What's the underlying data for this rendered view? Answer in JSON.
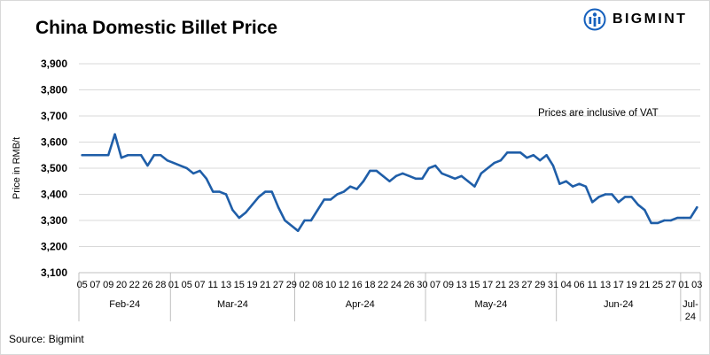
{
  "brand": {
    "name": "BIGMINT",
    "logo_icon": "bigmint-logo-icon",
    "color": "#1560bd"
  },
  "footer": {
    "source": "Source: Bigmint"
  },
  "chart_data": {
    "type": "line",
    "title": "China Domestic Billet Price",
    "ylabel": "Price in RMB/t",
    "xlabel": "",
    "ylim": [
      3100,
      3900
    ],
    "yticks": [
      3100,
      3200,
      3300,
      3400,
      3500,
      3600,
      3700,
      3800,
      3900
    ],
    "ytick_labels": [
      "3,100",
      "3,200",
      "3,300",
      "3,400",
      "3,500",
      "3,600",
      "3,700",
      "3,800",
      "3,900"
    ],
    "grid": true,
    "line_color": "#1f5ea8",
    "annotation": "Prices are inclusive of VAT",
    "months": [
      {
        "label": "Feb-24",
        "days": [
          "05",
          "07",
          "09",
          "20",
          "22",
          "26",
          "28"
        ]
      },
      {
        "label": "Mar-24",
        "days": [
          "01",
          "05",
          "07",
          "11",
          "13",
          "15",
          "19",
          "21",
          "27",
          "29"
        ]
      },
      {
        "label": "Apr-24",
        "days": [
          "02",
          "08",
          "10",
          "12",
          "16",
          "18",
          "22",
          "24",
          "26",
          "30"
        ]
      },
      {
        "label": "May-24",
        "days": [
          "07",
          "09",
          "13",
          "15",
          "17",
          "21",
          "23",
          "27",
          "29",
          "31"
        ]
      },
      {
        "label": "Jun-24",
        "days": [
          "04",
          "06",
          "11",
          "13",
          "17",
          "19",
          "21",
          "25",
          "27"
        ]
      },
      {
        "label": "Jul-24",
        "days": [
          "01",
          "03"
        ]
      }
    ],
    "x": [
      "2024-02-05",
      "2024-02-06",
      "2024-02-07",
      "2024-02-08",
      "2024-02-09",
      "2024-02-19",
      "2024-02-20",
      "2024-02-21",
      "2024-02-22",
      "2024-02-23",
      "2024-02-26",
      "2024-02-27",
      "2024-02-28",
      "2024-02-29",
      "2024-03-01",
      "2024-03-04",
      "2024-03-05",
      "2024-03-06",
      "2024-03-07",
      "2024-03-08",
      "2024-03-11",
      "2024-03-12",
      "2024-03-13",
      "2024-03-14",
      "2024-03-15",
      "2024-03-18",
      "2024-03-19",
      "2024-03-20",
      "2024-03-21",
      "2024-03-22",
      "2024-03-27",
      "2024-03-28",
      "2024-03-29",
      "2024-04-01",
      "2024-04-02",
      "2024-04-03",
      "2024-04-08",
      "2024-04-09",
      "2024-04-10",
      "2024-04-11",
      "2024-04-12",
      "2024-04-15",
      "2024-04-16",
      "2024-04-17",
      "2024-04-18",
      "2024-04-19",
      "2024-04-22",
      "2024-04-23",
      "2024-04-24",
      "2024-04-25",
      "2024-04-26",
      "2024-04-29",
      "2024-04-30",
      "2024-05-06",
      "2024-05-07",
      "2024-05-08",
      "2024-05-09",
      "2024-05-10",
      "2024-05-13",
      "2024-05-14",
      "2024-05-15",
      "2024-05-16",
      "2024-05-17",
      "2024-05-20",
      "2024-05-21",
      "2024-05-22",
      "2024-05-23",
      "2024-05-24",
      "2024-05-27",
      "2024-05-28",
      "2024-05-29",
      "2024-05-30",
      "2024-05-31",
      "2024-06-03",
      "2024-06-04",
      "2024-06-05",
      "2024-06-06",
      "2024-06-07",
      "2024-06-11",
      "2024-06-12",
      "2024-06-13",
      "2024-06-14",
      "2024-06-17",
      "2024-06-18",
      "2024-06-19",
      "2024-06-20",
      "2024-06-21",
      "2024-06-24",
      "2024-06-25",
      "2024-06-26",
      "2024-06-27",
      "2024-06-28",
      "2024-07-01",
      "2024-07-02",
      "2024-07-03"
    ],
    "series": [
      {
        "values": [
          3550,
          3550,
          3550,
          3550,
          3550,
          3630,
          3540,
          3550,
          3550,
          3550,
          3510,
          3550,
          3550,
          3530,
          3520,
          3510,
          3500,
          3480,
          3490,
          3460,
          3410,
          3410,
          3400,
          3340,
          3310,
          3330,
          3360,
          3390,
          3410,
          3410,
          3350,
          3300,
          3280,
          3260,
          3300,
          3300,
          3340,
          3380,
          3380,
          3400,
          3410,
          3430,
          3420,
          3450,
          3490,
          3490,
          3470,
          3450,
          3470,
          3480,
          3470,
          3460,
          3460,
          3500,
          3510,
          3480,
          3470,
          3460,
          3470,
          3450,
          3430,
          3480,
          3500,
          3520,
          3530,
          3560,
          3560,
          3560,
          3540,
          3550,
          3530,
          3550,
          3510,
          3440,
          3450,
          3430,
          3440,
          3430,
          3370,
          3390,
          3400,
          3400,
          3370,
          3390,
          3390,
          3360,
          3340,
          3290,
          3290,
          3300,
          3300,
          3310,
          3310,
          3310,
          3350
        ]
      }
    ]
  }
}
